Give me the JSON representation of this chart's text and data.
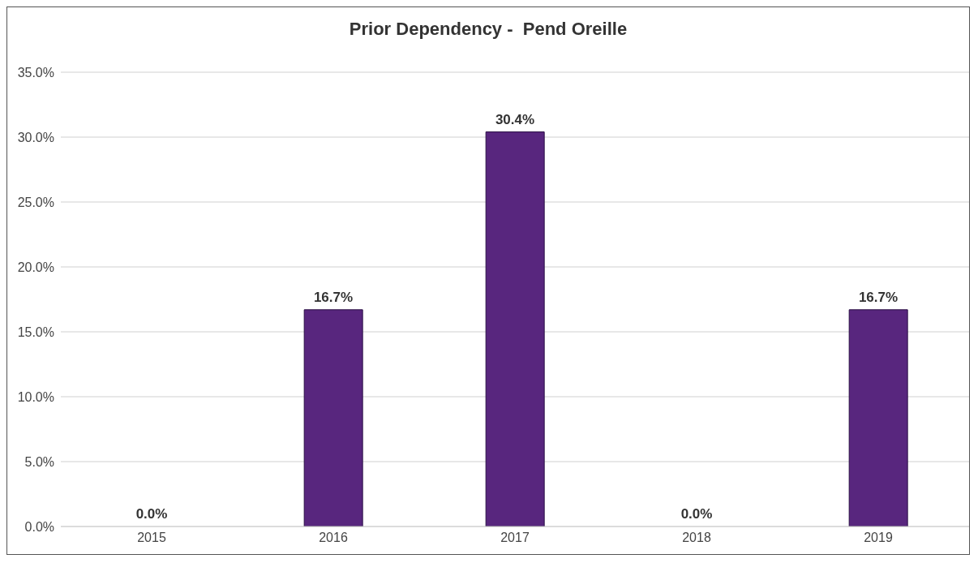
{
  "chart_data": {
    "type": "bar",
    "title": "Prior Dependency -  Pend Oreille",
    "categories": [
      "2015",
      "2016",
      "2017",
      "2018",
      "2019"
    ],
    "values": [
      0,
      16.7,
      30.4,
      0,
      16.7
    ],
    "value_labels": [
      "0.0%",
      "16.7%",
      "30.4%",
      "0.0%",
      "16.7%"
    ],
    "color": "#58267e",
    "ylim": [
      0,
      35
    ],
    "yticks": [
      {
        "value": 0,
        "label": "0.0%"
      },
      {
        "value": 5,
        "label": "5.0%"
      },
      {
        "value": 10,
        "label": "10.0%"
      },
      {
        "value": 15,
        "label": "15.0%"
      },
      {
        "value": 20,
        "label": "20.0%"
      },
      {
        "value": 25,
        "label": "25.0%"
      },
      {
        "value": 30,
        "label": "30.0%"
      },
      {
        "value": 35,
        "label": "35.0%"
      }
    ],
    "grid": "y",
    "legend": false
  }
}
